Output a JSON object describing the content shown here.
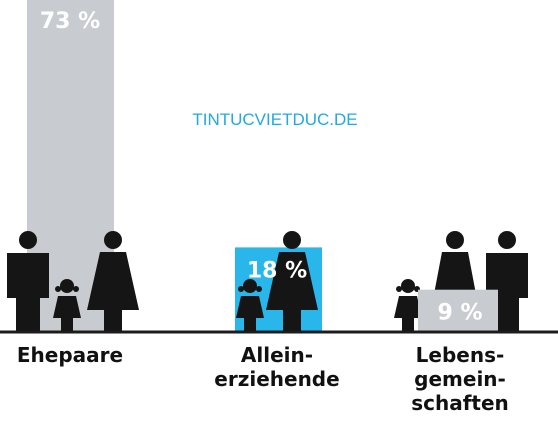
{
  "watermark": "TINTUCVIETDUC.DE",
  "chart_data": {
    "type": "bar",
    "categories": [
      {
        "lines": [
          "Ehepaare"
        ]
      },
      {
        "lines": [
          "Allein-",
          "erziehende"
        ]
      },
      {
        "lines": [
          "Lebens-",
          "gemein-",
          "schaften"
        ]
      }
    ],
    "values": [
      73,
      18,
      9
    ],
    "value_labels": [
      "73 %",
      "18 %",
      "9 %"
    ],
    "unit": "%",
    "bar_colors": [
      "#c8ccd0",
      "#29b6ea",
      "#c8ccd0"
    ],
    "ylim": [
      0,
      100
    ],
    "title": "",
    "xlabel": "",
    "ylabel": "",
    "grid": false,
    "legend": "none",
    "icons": [
      [
        "man-icon",
        "child-icon",
        "woman-icon"
      ],
      [
        "child-icon",
        "woman-icon"
      ],
      [
        "child-icon",
        "woman-icon",
        "man-icon"
      ]
    ]
  }
}
